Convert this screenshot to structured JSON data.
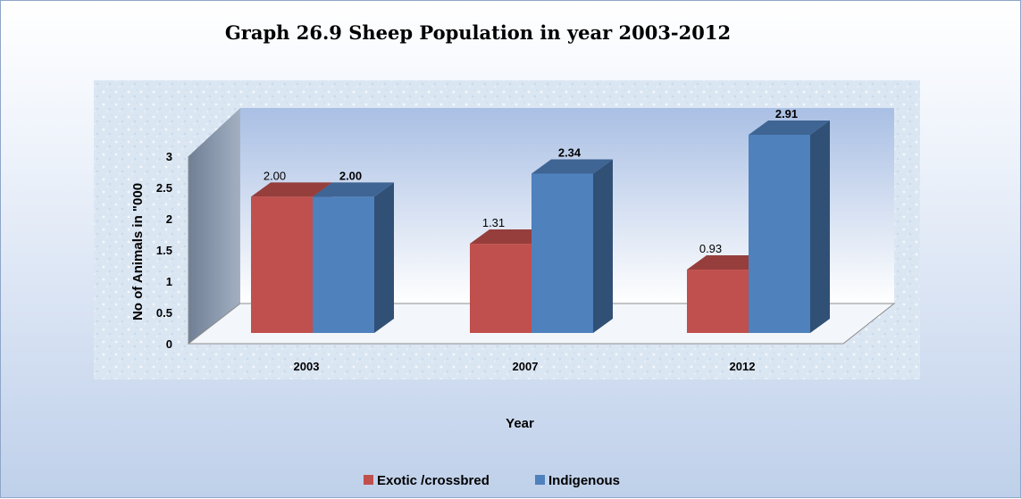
{
  "chart_data": {
    "type": "bar",
    "title": "Graph 26.9 Sheep Population in year 2003-2012",
    "xlabel": "Year",
    "ylabel": "No of Animals in \"000",
    "categories": [
      "2003",
      "2007",
      "2012"
    ],
    "series": [
      {
        "name": "Exotic /crossbred",
        "values": [
          2.0,
          1.31,
          0.93
        ],
        "labels": [
          "2.00",
          "1.31",
          "0.93"
        ],
        "color": "#c0504d"
      },
      {
        "name": "Indigenous",
        "values": [
          2.0,
          2.34,
          2.91
        ],
        "labels": [
          "2.00",
          "2.34",
          "2.91"
        ],
        "color": "#4f81bd"
      }
    ],
    "ylim": [
      0,
      3
    ],
    "yticks": [
      "0",
      "0.5",
      "1",
      "1.5",
      "2",
      "2.5",
      "3"
    ],
    "grid": false,
    "three_d": true,
    "legend_position": "bottom"
  },
  "colors": {
    "exotic": "#c0504d",
    "indigenous": "#4f81bd",
    "background_gradient_bottom": "#bfd0ea"
  }
}
